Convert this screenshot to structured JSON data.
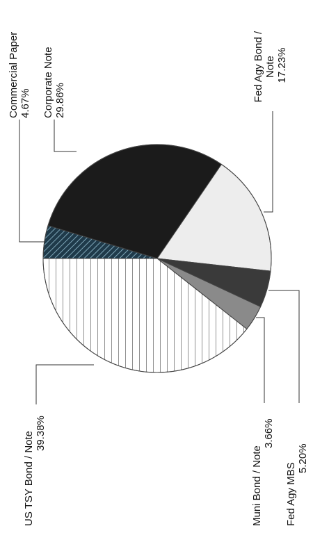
{
  "chart_data": {
    "type": "pie",
    "orientation": "rotated-90-counterclockwise",
    "slices": [
      {
        "label": "Commercial Paper",
        "value": 4.67,
        "display": "4.67%",
        "pattern": "diagonal-hatch",
        "color": "#1f3a4a"
      },
      {
        "label": "Corporate Note",
        "value": 29.86,
        "display": "29.86%",
        "pattern": "solid",
        "color": "#1b1b1b"
      },
      {
        "label": "Fed Agy Bond / Note",
        "value": 17.23,
        "display": "17.23%",
        "pattern": "solid",
        "color": "#ededed"
      },
      {
        "label": "Fed Agy MBS",
        "value": 5.2,
        "display": "5.20%",
        "pattern": "solid",
        "color": "#3a3a3a"
      },
      {
        "label": "Muni Bond / Note",
        "value": 3.66,
        "display": "3.66%",
        "pattern": "solid",
        "color": "#8a8a8a"
      },
      {
        "label": "US TSY Bond / Note",
        "value": 39.38,
        "display": "39.38%",
        "pattern": "vertical-lines",
        "color": "#ffffff"
      }
    ]
  }
}
